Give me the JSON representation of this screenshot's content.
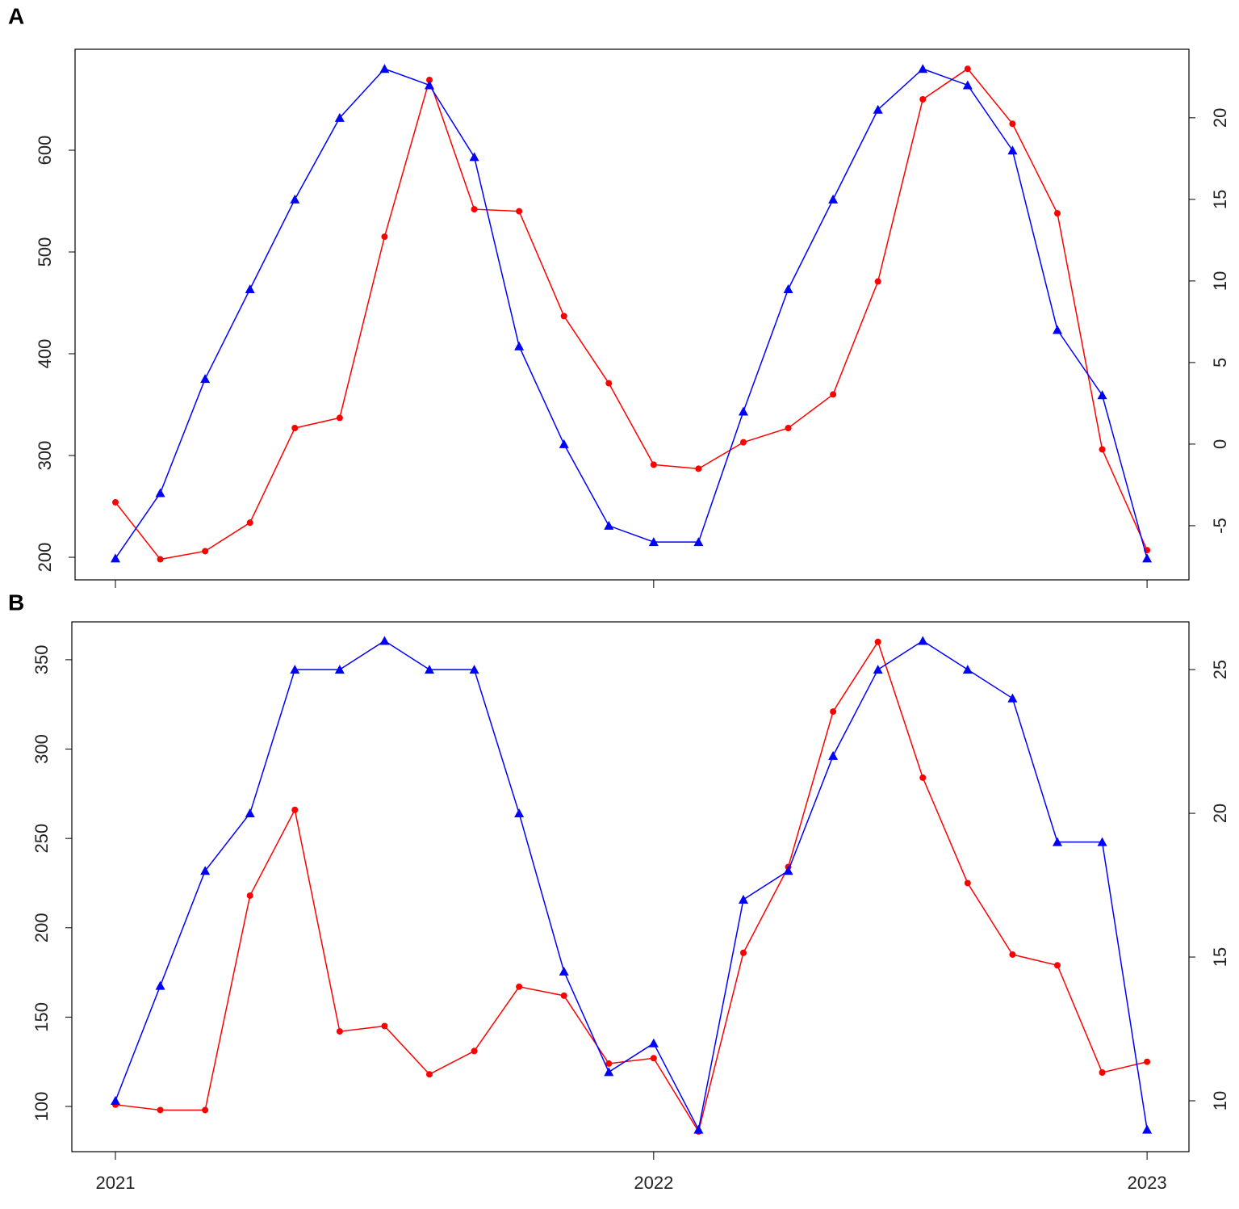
{
  "chart_data": [
    {
      "type": "line",
      "label": "A",
      "xticklabels": false,
      "categories": [
        "2021",
        null,
        null,
        null,
        null,
        null,
        null,
        null,
        null,
        null,
        null,
        null,
        "2022",
        null,
        null,
        null,
        null,
        null,
        null,
        null,
        null,
        null,
        null,
        "2023"
      ],
      "ylim": [
        177.8,
        699.2
      ],
      "yticks": [
        200,
        300,
        400,
        500,
        600
      ],
      "y2lim": [
        -8.32,
        24.2
      ],
      "y2ticks": [
        -5,
        0,
        5,
        10,
        15,
        20
      ],
      "series": [
        {
          "color": "#ff0000",
          "marker": "circle",
          "values": [
            254,
            198,
            206,
            234,
            327,
            337,
            515,
            669,
            542,
            540,
            437,
            371,
            291,
            287,
            313,
            327,
            360,
            471,
            650,
            680,
            626,
            538,
            306,
            207
          ]
        },
        {
          "color": "#0000ff",
          "marker": "triangle",
          "axis": "y2",
          "values": [
            -7,
            -3,
            4,
            9.5,
            15,
            20,
            23,
            22,
            17.6,
            6,
            0,
            -5,
            -6,
            -6,
            2,
            9.5,
            15,
            20.5,
            23,
            22,
            18,
            7,
            3,
            -7
          ]
        }
      ]
    },
    {
      "type": "line",
      "label": "B",
      "xticklabels": true,
      "categories": [
        "2021",
        null,
        null,
        null,
        null,
        null,
        null,
        null,
        null,
        null,
        null,
        null,
        "2022",
        null,
        null,
        null,
        null,
        null,
        null,
        null,
        null,
        null,
        null,
        "2023"
      ],
      "ylim": [
        74.7,
        371.2
      ],
      "yticks": [
        100,
        150,
        200,
        250,
        300,
        350
      ],
      "y2lim": [
        8.23,
        26.66
      ],
      "y2ticks": [
        10,
        15,
        20,
        25
      ],
      "series": [
        {
          "color": "#ff0000",
          "marker": "circle",
          "values": [
            101,
            98,
            98,
            218,
            266,
            142,
            145,
            118,
            131,
            167,
            162,
            124,
            127,
            86,
            186,
            234,
            321,
            360,
            284,
            225,
            185,
            179,
            119,
            125
          ]
        },
        {
          "color": "#0000ff",
          "marker": "triangle",
          "axis": "y2",
          "values": [
            10,
            14,
            18,
            20,
            25,
            25,
            26,
            25,
            25,
            20,
            14.5,
            11,
            12,
            9,
            17,
            18,
            22,
            25,
            26,
            25,
            24,
            19,
            19,
            9
          ]
        }
      ]
    }
  ]
}
